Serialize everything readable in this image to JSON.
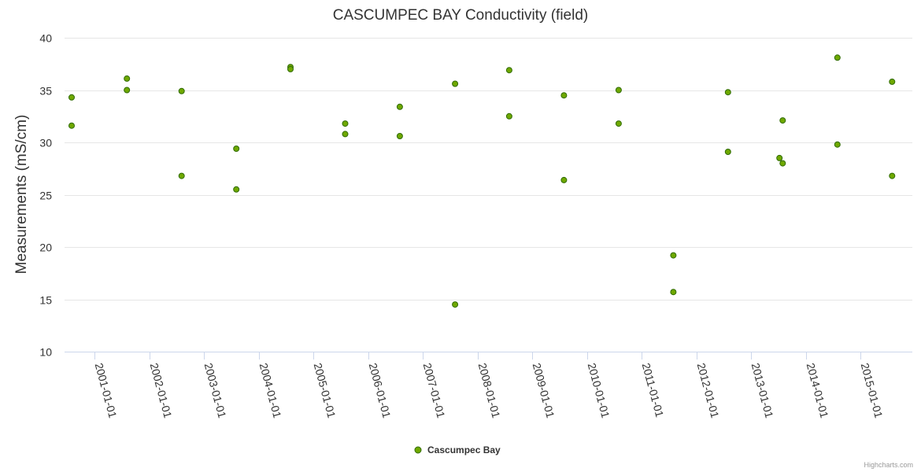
{
  "chart_data": {
    "type": "scatter",
    "title": "CASCUMPEC BAY Conductivity (field)",
    "ylabel": "Measurements (mS/cm)",
    "xlabel": "",
    "ylim": [
      10,
      40
    ],
    "yticks": [
      10,
      15,
      20,
      25,
      30,
      35,
      40
    ],
    "xlim": [
      2000.45,
      2015.95
    ],
    "xticks": [
      {
        "value": 2001,
        "label": "2001-01-01"
      },
      {
        "value": 2002,
        "label": "2002-01-01"
      },
      {
        "value": 2003,
        "label": "2003-01-01"
      },
      {
        "value": 2004,
        "label": "2004-01-01"
      },
      {
        "value": 2005,
        "label": "2005-01-01"
      },
      {
        "value": 2006,
        "label": "2006-01-01"
      },
      {
        "value": 2007,
        "label": "2007-01-01"
      },
      {
        "value": 2008,
        "label": "2008-01-01"
      },
      {
        "value": 2009,
        "label": "2009-01-01"
      },
      {
        "value": 2010,
        "label": "2010-01-01"
      },
      {
        "value": 2011,
        "label": "2011-01-01"
      },
      {
        "value": 2012,
        "label": "2012-01-01"
      },
      {
        "value": 2013,
        "label": "2013-01-01"
      },
      {
        "value": 2014,
        "label": "2014-01-01"
      },
      {
        "value": 2015,
        "label": "2015-01-01"
      }
    ],
    "grid": true,
    "legend_position": "bottom-center",
    "series": [
      {
        "name": "Cascumpec Bay",
        "color": "#6fa800",
        "stroke": "#2f6b00",
        "points": [
          {
            "x": 2000.58,
            "y": 34.3
          },
          {
            "x": 2000.58,
            "y": 31.6
          },
          {
            "x": 2001.59,
            "y": 36.1
          },
          {
            "x": 2001.59,
            "y": 35.0
          },
          {
            "x": 2002.59,
            "y": 34.9
          },
          {
            "x": 2002.59,
            "y": 26.8
          },
          {
            "x": 2003.59,
            "y": 29.4
          },
          {
            "x": 2003.59,
            "y": 25.5
          },
          {
            "x": 2004.58,
            "y": 37.2
          },
          {
            "x": 2004.58,
            "y": 37.0
          },
          {
            "x": 2005.58,
            "y": 31.8
          },
          {
            "x": 2005.58,
            "y": 30.8
          },
          {
            "x": 2006.58,
            "y": 33.4
          },
          {
            "x": 2006.58,
            "y": 30.6
          },
          {
            "x": 2007.59,
            "y": 35.6
          },
          {
            "x": 2007.59,
            "y": 14.5
          },
          {
            "x": 2008.58,
            "y": 36.9
          },
          {
            "x": 2008.58,
            "y": 32.5
          },
          {
            "x": 2009.58,
            "y": 34.5
          },
          {
            "x": 2009.58,
            "y": 26.4
          },
          {
            "x": 2010.58,
            "y": 35.0
          },
          {
            "x": 2010.58,
            "y": 31.8
          },
          {
            "x": 2011.58,
            "y": 19.2
          },
          {
            "x": 2011.58,
            "y": 15.7
          },
          {
            "x": 2012.58,
            "y": 34.8
          },
          {
            "x": 2012.58,
            "y": 29.1
          },
          {
            "x": 2013.52,
            "y": 28.5
          },
          {
            "x": 2013.58,
            "y": 28.0
          },
          {
            "x": 2013.58,
            "y": 32.1
          },
          {
            "x": 2014.58,
            "y": 38.1
          },
          {
            "x": 2014.58,
            "y": 29.8
          },
          {
            "x": 2015.58,
            "y": 35.8
          },
          {
            "x": 2015.58,
            "y": 26.8
          }
        ]
      }
    ]
  },
  "credits": "Highcharts.com"
}
